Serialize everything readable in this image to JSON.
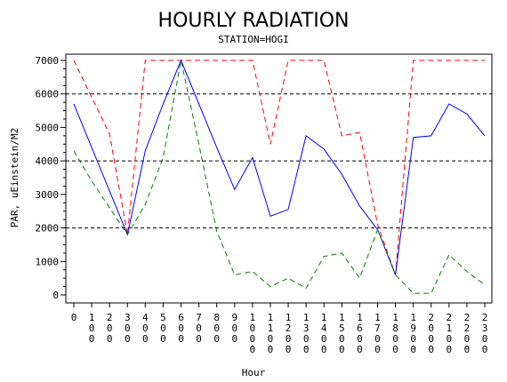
{
  "chart_data": {
    "type": "line",
    "title": "HOURLY RADIATION",
    "subtitle": "STATION=HOGI",
    "xlabel": "Hour",
    "ylabel": "PAR, uEinstein/M2",
    "ylim": [
      0,
      7000
    ],
    "yticks": [
      0,
      1000,
      2000,
      3000,
      4000,
      5000,
      6000,
      7000
    ],
    "x": [
      0,
      100,
      200,
      300,
      400,
      500,
      600,
      700,
      800,
      900,
      1000,
      1100,
      1200,
      1300,
      1400,
      1500,
      1600,
      1700,
      1800,
      1900,
      2000,
      2100,
      2200,
      2300
    ],
    "xtick_labels": [
      "0",
      "100",
      "200",
      "300",
      "400",
      "500",
      "600",
      "700",
      "800",
      "900",
      "1000",
      "1100",
      "1200",
      "1300",
      "1400",
      "1500",
      "1600",
      "1700",
      "1800",
      "1900",
      "2000",
      "2100",
      "2200",
      "2300"
    ],
    "reference_lines": [
      2000,
      4000,
      6000
    ],
    "series": [
      {
        "color": "#ff0000",
        "dash": "dashed",
        "values": [
          7000,
          5900,
          4800,
          1800,
          7000,
          7000,
          7000,
          7000,
          7000,
          7000,
          7000,
          4500,
          7000,
          7000,
          7000,
          4750,
          4850,
          2100,
          600,
          7000,
          7000,
          7000,
          7000,
          7000
        ]
      },
      {
        "color": "#0000ff",
        "dash": "solid",
        "values": [
          5700,
          4400,
          3100,
          1800,
          4300,
          5700,
          7000,
          5700,
          4400,
          3150,
          4100,
          2350,
          2550,
          4750,
          4350,
          3600,
          2650,
          1950,
          600,
          4700,
          4750,
          5700,
          5400,
          4750
        ]
      },
      {
        "color": "#008000",
        "dash": "dashed",
        "values": [
          4300,
          3400,
          2600,
          1800,
          2700,
          4100,
          7000,
          4500,
          1900,
          600,
          700,
          250,
          500,
          200,
          1150,
          1250,
          500,
          1950,
          600,
          50,
          50,
          1200,
          700,
          300
        ]
      }
    ],
    "grid": false
  }
}
